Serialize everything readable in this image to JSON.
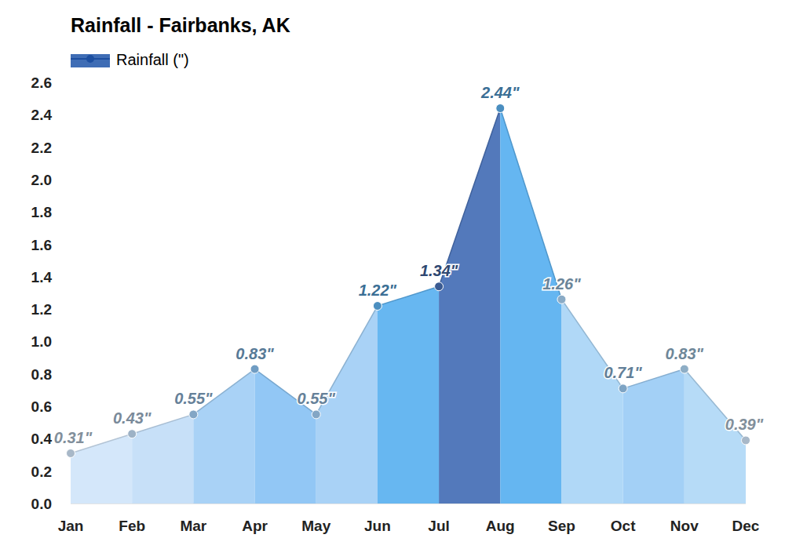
{
  "chart_data": {
    "type": "area",
    "title": "Rainfall - Fairbanks, AK",
    "categories": [
      "Jan",
      "Feb",
      "Mar",
      "Apr",
      "May",
      "Jun",
      "Jul",
      "Aug",
      "Sep",
      "Oct",
      "Nov",
      "Dec"
    ],
    "series": [
      {
        "name": "Rainfall (\")",
        "color": "#3f6db5",
        "values": [
          0.31,
          0.43,
          0.55,
          0.83,
          0.55,
          1.22,
          1.34,
          2.44,
          1.26,
          0.71,
          0.83,
          0.39
        ],
        "value_labels": [
          "0.31\"",
          "0.43\"",
          "0.55\"",
          "0.83\"",
          "0.55\"",
          "1.22\"",
          "1.34\"",
          "2.44\"",
          "1.26\"",
          "0.71\"",
          "0.83\"",
          "0.39\""
        ],
        "colors": [
          "#d2e6fa",
          "#c4def8",
          "#a4d0f6",
          "#8cc4f4",
          "#a4d0f6",
          "#5fb3f0",
          "#4a72b7",
          "#5db2f0",
          "#acd6f7",
          "#9ecdf5",
          "#b2d9f7",
          "#d2e6fa"
        ]
      }
    ],
    "ylim": [
      0,
      2.6
    ],
    "yticks": [
      {
        "value": 0,
        "label": "0.0"
      },
      0.2,
      0.4,
      0.6,
      0.8,
      {
        "value": 1,
        "label": "1.0"
      },
      1.2,
      1.4,
      1.6,
      1.8,
      {
        "value": 2,
        "label": "2.0"
      },
      2.2,
      2.4,
      2.6
    ],
    "grid": false,
    "legend": "top-left",
    "data_labels": true
  }
}
